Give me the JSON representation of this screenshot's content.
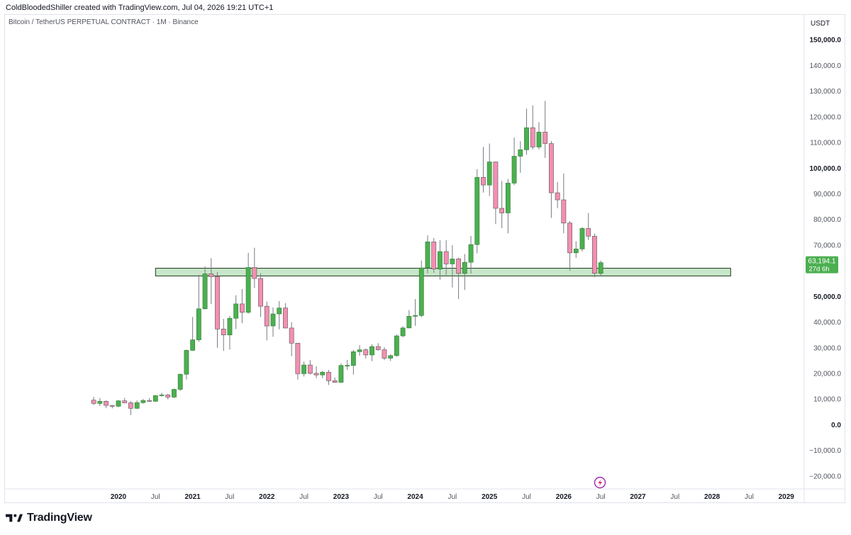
{
  "header": {
    "attribution": "ColdBloodedShiller created with TradingView.com, Jul 04, 2026 19:21 UTC+1"
  },
  "chart_title": "Bitcoin / TetherUS PERPETUAL CONTRACT · 1M · Binance",
  "footer": {
    "brand": "TradingView"
  },
  "colors": {
    "up": "#4caf50",
    "down": "#f48fb1",
    "zone_fill": "#c8e6c9",
    "zone_stroke": "#1b3a1b",
    "wick": "#787b86",
    "price_label": "#4caf50"
  },
  "chart_data": {
    "type": "candlestick",
    "interval": "1M",
    "currency": "USDT",
    "ylim": [
      -25000,
      160000
    ],
    "y_ticks": [
      {
        "value": 150000,
        "label": "150,000.0",
        "bold": true
      },
      {
        "value": 140000,
        "label": "140,000.0",
        "bold": false
      },
      {
        "value": 130000,
        "label": "130,000.0",
        "bold": false
      },
      {
        "value": 120000,
        "label": "120,000.0",
        "bold": false
      },
      {
        "value": 110000,
        "label": "110,000.0",
        "bold": false
      },
      {
        "value": 100000,
        "label": "100,000.0",
        "bold": true
      },
      {
        "value": 90000,
        "label": "90,000.0",
        "bold": false
      },
      {
        "value": 80000,
        "label": "80,000.0",
        "bold": false
      },
      {
        "value": 70000,
        "label": "70,000.0",
        "bold": false
      },
      {
        "value": 50000,
        "label": "50,000.0",
        "bold": true
      },
      {
        "value": 40000,
        "label": "40,000.0",
        "bold": false
      },
      {
        "value": 30000,
        "label": "30,000.0",
        "bold": false
      },
      {
        "value": 20000,
        "label": "20,000.0",
        "bold": false
      },
      {
        "value": 10000,
        "label": "10,000.0",
        "bold": false
      },
      {
        "value": 0,
        "label": "0.0",
        "bold": true
      },
      {
        "value": -10000,
        "label": "−10,000.0",
        "bold": false
      },
      {
        "value": -20000,
        "label": "−20,000.0",
        "bold": false
      }
    ],
    "x_ticks": [
      {
        "month": "2020-01",
        "label": "2020",
        "bold": true
      },
      {
        "month": "2020-07",
        "label": "Jul",
        "bold": false
      },
      {
        "month": "2021-01",
        "label": "2021",
        "bold": true
      },
      {
        "month": "2021-07",
        "label": "Jul",
        "bold": false
      },
      {
        "month": "2022-01",
        "label": "2022",
        "bold": true
      },
      {
        "month": "2022-07",
        "label": "Jul",
        "bold": false
      },
      {
        "month": "2023-01",
        "label": "2023",
        "bold": true
      },
      {
        "month": "2023-07",
        "label": "Jul",
        "bold": false
      },
      {
        "month": "2024-01",
        "label": "2024",
        "bold": true
      },
      {
        "month": "2024-07",
        "label": "Jul",
        "bold": false
      },
      {
        "month": "2025-01",
        "label": "2025",
        "bold": true
      },
      {
        "month": "2025-07",
        "label": "Jul",
        "bold": false
      },
      {
        "month": "2026-01",
        "label": "2026",
        "bold": true
      },
      {
        "month": "2026-07",
        "label": "Jul",
        "bold": false
      },
      {
        "month": "2027-01",
        "label": "2027",
        "bold": true
      },
      {
        "month": "2027-07",
        "label": "Jul",
        "bold": false
      },
      {
        "month": "2028-01",
        "label": "2028",
        "bold": true
      },
      {
        "month": "2028-07",
        "label": "Jul",
        "bold": false
      },
      {
        "month": "2029-01",
        "label": "2029",
        "bold": true
      }
    ],
    "zone": {
      "from_month": "2020-07",
      "to_month": "2028-04",
      "low": 58000,
      "high": 61000
    },
    "last_price": {
      "value": 63194.1,
      "label": "63,194.1",
      "countdown": "27d 6h"
    },
    "candles": [
      {
        "month": "2019-09",
        "o": 9600,
        "h": 10900,
        "l": 7700,
        "c": 8300
      },
      {
        "month": "2019-10",
        "o": 8300,
        "h": 10400,
        "l": 7300,
        "c": 9150
      },
      {
        "month": "2019-11",
        "o": 9150,
        "h": 9500,
        "l": 6500,
        "c": 7550
      },
      {
        "month": "2019-12",
        "o": 7550,
        "h": 7700,
        "l": 6400,
        "c": 7200
      },
      {
        "month": "2020-01",
        "o": 7200,
        "h": 9600,
        "l": 6900,
        "c": 9350
      },
      {
        "month": "2020-02",
        "o": 9350,
        "h": 10500,
        "l": 8400,
        "c": 8550
      },
      {
        "month": "2020-03",
        "o": 8550,
        "h": 9200,
        "l": 3800,
        "c": 6400
      },
      {
        "month": "2020-04",
        "o": 6400,
        "h": 9500,
        "l": 6150,
        "c": 8630
      },
      {
        "month": "2020-05",
        "o": 8630,
        "h": 10100,
        "l": 8200,
        "c": 9450
      },
      {
        "month": "2020-06",
        "o": 9450,
        "h": 10400,
        "l": 8900,
        "c": 9150
      },
      {
        "month": "2020-07",
        "o": 9150,
        "h": 11500,
        "l": 8950,
        "c": 11350
      },
      {
        "month": "2020-08",
        "o": 11350,
        "h": 12500,
        "l": 11000,
        "c": 11650
      },
      {
        "month": "2020-09",
        "o": 11650,
        "h": 12100,
        "l": 9900,
        "c": 10780
      },
      {
        "month": "2020-10",
        "o": 10780,
        "h": 14100,
        "l": 10400,
        "c": 13800
      },
      {
        "month": "2020-11",
        "o": 13800,
        "h": 19900,
        "l": 13200,
        "c": 19700
      },
      {
        "month": "2020-12",
        "o": 19700,
        "h": 29300,
        "l": 17600,
        "c": 29000
      },
      {
        "month": "2021-01",
        "o": 29000,
        "h": 42000,
        "l": 28800,
        "c": 33100
      },
      {
        "month": "2021-02",
        "o": 33100,
        "h": 58400,
        "l": 32300,
        "c": 45200
      },
      {
        "month": "2021-03",
        "o": 45200,
        "h": 61800,
        "l": 44900,
        "c": 58800
      },
      {
        "month": "2021-04",
        "o": 58800,
        "h": 64900,
        "l": 47000,
        "c": 57700
      },
      {
        "month": "2021-05",
        "o": 57700,
        "h": 59500,
        "l": 30000,
        "c": 37300
      },
      {
        "month": "2021-06",
        "o": 37300,
        "h": 41300,
        "l": 28800,
        "c": 35000
      },
      {
        "month": "2021-07",
        "o": 35000,
        "h": 42400,
        "l": 29300,
        "c": 41500
      },
      {
        "month": "2021-08",
        "o": 41500,
        "h": 50500,
        "l": 37300,
        "c": 47100
      },
      {
        "month": "2021-09",
        "o": 47100,
        "h": 52900,
        "l": 39600,
        "c": 43800
      },
      {
        "month": "2021-10",
        "o": 43800,
        "h": 67000,
        "l": 43300,
        "c": 61300
      },
      {
        "month": "2021-11",
        "o": 61300,
        "h": 69000,
        "l": 53300,
        "c": 57000
      },
      {
        "month": "2021-12",
        "o": 57000,
        "h": 59000,
        "l": 42000,
        "c": 46200
      },
      {
        "month": "2022-01",
        "o": 46200,
        "h": 48000,
        "l": 32900,
        "c": 38500
      },
      {
        "month": "2022-02",
        "o": 38500,
        "h": 45800,
        "l": 34300,
        "c": 43200
      },
      {
        "month": "2022-03",
        "o": 43200,
        "h": 48200,
        "l": 37200,
        "c": 45500
      },
      {
        "month": "2022-04",
        "o": 45500,
        "h": 47400,
        "l": 37600,
        "c": 37700
      },
      {
        "month": "2022-05",
        "o": 37700,
        "h": 40000,
        "l": 26700,
        "c": 31800
      },
      {
        "month": "2022-06",
        "o": 31800,
        "h": 31900,
        "l": 17600,
        "c": 19900
      },
      {
        "month": "2022-07",
        "o": 19900,
        "h": 24600,
        "l": 18800,
        "c": 23300
      },
      {
        "month": "2022-08",
        "o": 23300,
        "h": 25200,
        "l": 19600,
        "c": 20050
      },
      {
        "month": "2022-09",
        "o": 20050,
        "h": 22800,
        "l": 18200,
        "c": 19420
      },
      {
        "month": "2022-10",
        "o": 19420,
        "h": 21000,
        "l": 18200,
        "c": 20490
      },
      {
        "month": "2022-11",
        "o": 20490,
        "h": 21400,
        "l": 15500,
        "c": 17170
      },
      {
        "month": "2022-12",
        "o": 17170,
        "h": 18400,
        "l": 16300,
        "c": 16540
      },
      {
        "month": "2023-01",
        "o": 16540,
        "h": 23900,
        "l": 16500,
        "c": 23120
      },
      {
        "month": "2023-02",
        "o": 23120,
        "h": 25250,
        "l": 21400,
        "c": 23130
      },
      {
        "month": "2023-03",
        "o": 23130,
        "h": 29200,
        "l": 19550,
        "c": 28470
      },
      {
        "month": "2023-04",
        "o": 28470,
        "h": 31000,
        "l": 26900,
        "c": 29230
      },
      {
        "month": "2023-05",
        "o": 29230,
        "h": 29800,
        "l": 25800,
        "c": 27210
      },
      {
        "month": "2023-06",
        "o": 27210,
        "h": 31400,
        "l": 24800,
        "c": 30470
      },
      {
        "month": "2023-07",
        "o": 30470,
        "h": 31800,
        "l": 28900,
        "c": 29230
      },
      {
        "month": "2023-08",
        "o": 29230,
        "h": 30200,
        "l": 25200,
        "c": 25940
      },
      {
        "month": "2023-09",
        "o": 25940,
        "h": 27500,
        "l": 24900,
        "c": 26960
      },
      {
        "month": "2023-10",
        "o": 26960,
        "h": 35200,
        "l": 26500,
        "c": 34640
      },
      {
        "month": "2023-11",
        "o": 34640,
        "h": 38400,
        "l": 34100,
        "c": 37720
      },
      {
        "month": "2023-12",
        "o": 37720,
        "h": 44700,
        "l": 37600,
        "c": 42280
      },
      {
        "month": "2024-01",
        "o": 42280,
        "h": 48970,
        "l": 38550,
        "c": 42580
      },
      {
        "month": "2024-02",
        "o": 42580,
        "h": 64000,
        "l": 41880,
        "c": 61130
      },
      {
        "month": "2024-03",
        "o": 61130,
        "h": 73800,
        "l": 59000,
        "c": 71290
      },
      {
        "month": "2024-04",
        "o": 71290,
        "h": 72800,
        "l": 59200,
        "c": 60670
      },
      {
        "month": "2024-05",
        "o": 60670,
        "h": 71900,
        "l": 56550,
        "c": 67490
      },
      {
        "month": "2024-06",
        "o": 67490,
        "h": 71950,
        "l": 58400,
        "c": 62680
      },
      {
        "month": "2024-07",
        "o": 62680,
        "h": 70000,
        "l": 53500,
        "c": 64620
      },
      {
        "month": "2024-08",
        "o": 64620,
        "h": 65100,
        "l": 49000,
        "c": 58970
      },
      {
        "month": "2024-09",
        "o": 58970,
        "h": 66500,
        "l": 52550,
        "c": 63330
      },
      {
        "month": "2024-10",
        "o": 63330,
        "h": 73600,
        "l": 58900,
        "c": 70220
      },
      {
        "month": "2024-11",
        "o": 70220,
        "h": 99600,
        "l": 66800,
        "c": 96400
      },
      {
        "month": "2024-12",
        "o": 96400,
        "h": 108300,
        "l": 90500,
        "c": 93430
      },
      {
        "month": "2025-01",
        "o": 93430,
        "h": 109600,
        "l": 89200,
        "c": 102430
      },
      {
        "month": "2025-02",
        "o": 102430,
        "h": 102500,
        "l": 78200,
        "c": 84350
      },
      {
        "month": "2025-03",
        "o": 84350,
        "h": 95000,
        "l": 76600,
        "c": 82550
      },
      {
        "month": "2025-04",
        "o": 82550,
        "h": 95800,
        "l": 74600,
        "c": 94170
      },
      {
        "month": "2025-05",
        "o": 94170,
        "h": 111900,
        "l": 93400,
        "c": 104640
      },
      {
        "month": "2025-06",
        "o": 104640,
        "h": 110500,
        "l": 98200,
        "c": 107160
      },
      {
        "month": "2025-07",
        "o": 107160,
        "h": 123200,
        "l": 105300,
        "c": 115760
      },
      {
        "month": "2025-08",
        "o": 115760,
        "h": 124500,
        "l": 107300,
        "c": 108240
      },
      {
        "month": "2025-09",
        "o": 108240,
        "h": 117900,
        "l": 107300,
        "c": 114050
      },
      {
        "month": "2025-10",
        "o": 114050,
        "h": 126200,
        "l": 104000,
        "c": 109580
      },
      {
        "month": "2025-11",
        "o": 109580,
        "h": 110600,
        "l": 80600,
        "c": 90400
      },
      {
        "month": "2025-12",
        "o": 90400,
        "h": 94600,
        "l": 84400,
        "c": 87650
      },
      {
        "month": "2026-01",
        "o": 87650,
        "h": 97900,
        "l": 74600,
        "c": 78600
      },
      {
        "month": "2026-02",
        "o": 78600,
        "h": 79400,
        "l": 60000,
        "c": 67000
      },
      {
        "month": "2026-03",
        "o": 67000,
        "h": 71500,
        "l": 65000,
        "c": 68500
      },
      {
        "month": "2026-04",
        "o": 68500,
        "h": 77000,
        "l": 67500,
        "c": 76500
      },
      {
        "month": "2026-05",
        "o": 76500,
        "h": 82500,
        "l": 72000,
        "c": 73500
      },
      {
        "month": "2026-06",
        "o": 73500,
        "h": 74500,
        "l": 57500,
        "c": 59000
      },
      {
        "month": "2026-07",
        "o": 59000,
        "h": 64000,
        "l": 58000,
        "c": 63194.1
      }
    ]
  }
}
